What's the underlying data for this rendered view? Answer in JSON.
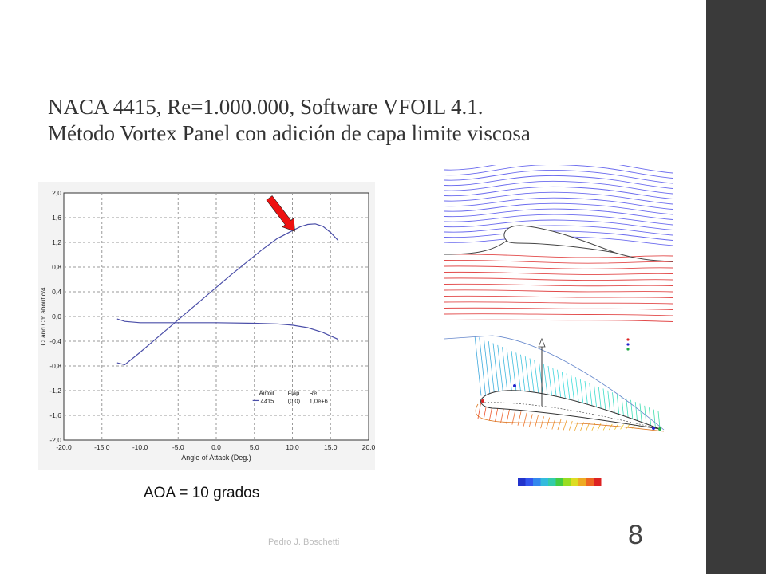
{
  "slide": {
    "title_line1": "NACA 4415, Re=1.000.000, Software VFOIL 4.1.",
    "title_line2": "Método Vortex Panel con adición de capa limite viscosa",
    "caption": "AOA = 10 grados",
    "footer": "Pedro J. Boschetti",
    "page_number": "8"
  },
  "colors": {
    "sidebar": "#3a3a3a",
    "curve": "#4a4ea8",
    "arrow": "#ee1111",
    "streamline_upper": "#6a6aee",
    "streamline_lower": "#e24a4a"
  },
  "chart_data": {
    "type": "line",
    "title": "",
    "xlabel": "Angle of Attack (Deg.)",
    "ylabel": "Cl and Cm about c/4",
    "xlim": [
      -20,
      20
    ],
    "ylim": [
      -2,
      2
    ],
    "x_ticks": [
      "-20,0",
      "-15,0",
      "-10,0",
      "-5,0",
      "0,0",
      "5,0",
      "10,0",
      "15,0",
      "20,0"
    ],
    "y_ticks": [
      "2,0",
      "1,6",
      "1,2",
      "0,8",
      "0,4",
      "0,0",
      "-0,4",
      "-0,8",
      "-1,2",
      "-1,6",
      "-2,0"
    ],
    "grid": true,
    "legend": {
      "position": "bottom-right",
      "headers": [
        "Airfoil",
        "Flap",
        "Re"
      ],
      "entries": [
        [
          "4415",
          "(0,0)",
          "1,0e+6"
        ]
      ]
    },
    "series": [
      {
        "x": [
          -13,
          -12,
          -10,
          -8,
          -6,
          -4,
          -2,
          0,
          2,
          4,
          6,
          8,
          10,
          11,
          12,
          13,
          14,
          15,
          16
        ],
        "y": [
          -0.75,
          -0.78,
          -0.58,
          -0.37,
          -0.16,
          0.05,
          0.26,
          0.47,
          0.68,
          0.88,
          1.08,
          1.26,
          1.39,
          1.45,
          1.49,
          1.5,
          1.46,
          1.36,
          1.23
        ]
      },
      {
        "x": [
          -13,
          -12,
          -10,
          -5,
          0,
          5,
          8,
          10,
          12,
          14,
          16
        ],
        "y": [
          -0.04,
          -0.08,
          -0.1,
          -0.1,
          -0.1,
          -0.11,
          -0.12,
          -0.14,
          -0.18,
          -0.26,
          -0.37
        ]
      }
    ],
    "annotation": "arrow pointing to Cl at 10 deg"
  }
}
